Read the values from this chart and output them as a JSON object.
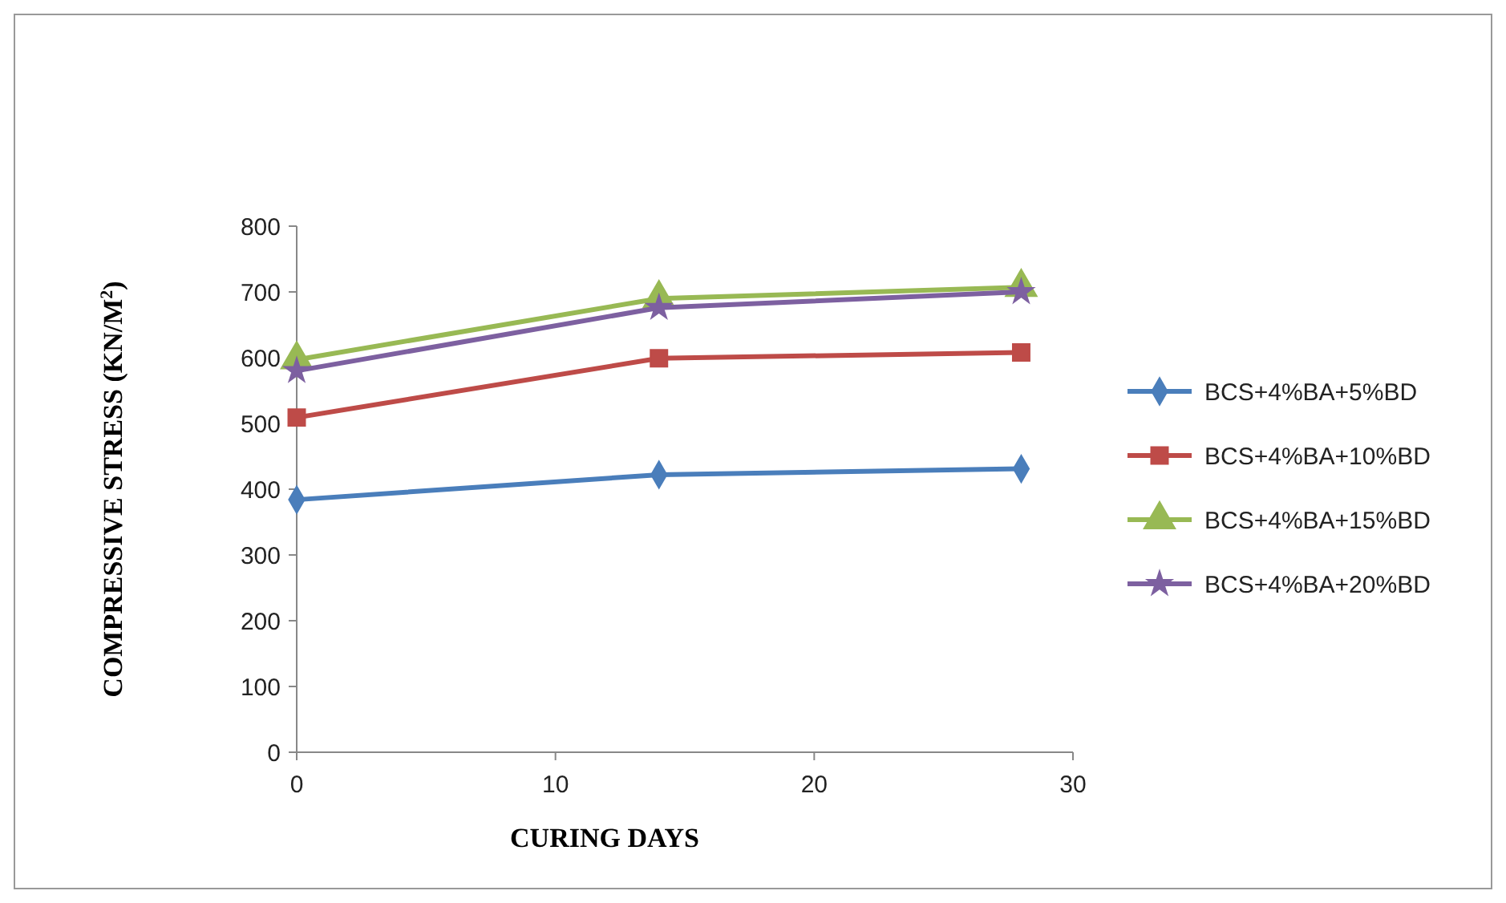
{
  "chart_data": {
    "type": "line",
    "xlabel": "CURING DAYS",
    "ylabel": "COMPRESSIVE STRESS (KN/M$^{2}$)",
    "x": [
      0,
      14,
      28
    ],
    "xlim": [
      0,
      30
    ],
    "xticks": [
      0,
      10,
      20,
      30
    ],
    "ylim": [
      0,
      800
    ],
    "yticks": [
      0,
      100,
      200,
      300,
      400,
      500,
      600,
      700,
      800
    ],
    "grid": false,
    "legend": "right",
    "series": [
      {
        "name": "BCS+4%BA+5%BD",
        "color": "#4a7ebb",
        "marker": "diamond",
        "values": [
          384,
          422,
          431
        ]
      },
      {
        "name": "BCS+4%BA+10%BD",
        "color": "#be4b48",
        "marker": "square",
        "values": [
          509,
          599,
          608
        ]
      },
      {
        "name": "BCS+4%BA+15%BD",
        "color": "#98b954",
        "marker": "triangle",
        "values": [
          597,
          690,
          707
        ]
      },
      {
        "name": "BCS+4%BA+20%BD",
        "color": "#7d60a0",
        "marker": "star",
        "values": [
          580,
          676,
          700
        ]
      }
    ]
  }
}
